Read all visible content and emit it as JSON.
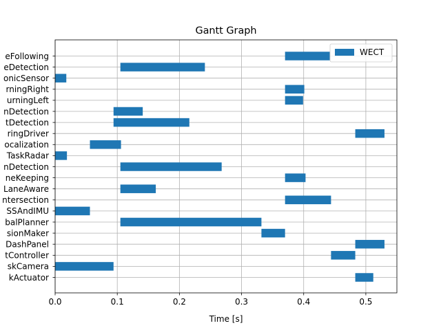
{
  "chart_data": {
    "type": "gantt",
    "title": "Gantt Graph",
    "xlabel": "Time [s]",
    "ylabel": "",
    "xlim": [
      0,
      0.55
    ],
    "xticks": [
      0.0,
      0.1,
      0.2,
      0.3,
      0.4,
      0.5
    ],
    "xtick_labels": [
      "0.0",
      "0.1",
      "0.2",
      "0.3",
      "0.4",
      "0.5"
    ],
    "grid": true,
    "legend": {
      "position": "top-right",
      "entries": [
        "WECT"
      ]
    },
    "bar_color": "#1f77b4",
    "series_name": "WECT",
    "tasks": [
      {
        "label": "eFollowing",
        "start": 0.37,
        "end": 0.442
      },
      {
        "label": "eDetection",
        "start": 0.105,
        "end": 0.241
      },
      {
        "label": "onicSensor",
        "start": 0.0,
        "end": 0.018
      },
      {
        "label": "rningRight",
        "start": 0.37,
        "end": 0.401
      },
      {
        "label": "urningLeft",
        "start": 0.37,
        "end": 0.399
      },
      {
        "label": "nDetection",
        "start": 0.094,
        "end": 0.141
      },
      {
        "label": "tDetection",
        "start": 0.094,
        "end": 0.216
      },
      {
        "label": "ringDriver",
        "start": 0.483,
        "end": 0.53
      },
      {
        "label": "ocalization",
        "start": 0.056,
        "end": 0.106
      },
      {
        "label": "TaskRadar",
        "start": 0.0,
        "end": 0.019
      },
      {
        "label": "nDetection",
        "start": 0.105,
        "end": 0.268
      },
      {
        "label": "neKeeping",
        "start": 0.37,
        "end": 0.403
      },
      {
        "label": "LaneAware",
        "start": 0.105,
        "end": 0.162
      },
      {
        "label": "ntersection",
        "start": 0.37,
        "end": 0.444
      },
      {
        "label": "SSAndIMU",
        "start": 0.0,
        "end": 0.056
      },
      {
        "label": "balPlanner",
        "start": 0.105,
        "end": 0.332
      },
      {
        "label": "sionMaker",
        "start": 0.332,
        "end": 0.37
      },
      {
        "label": "DashPanel",
        "start": 0.483,
        "end": 0.53
      },
      {
        "label": "tController",
        "start": 0.444,
        "end": 0.483
      },
      {
        "label": "skCamera",
        "start": 0.0,
        "end": 0.094
      },
      {
        "label": "kActuator",
        "start": 0.483,
        "end": 0.512
      }
    ]
  }
}
